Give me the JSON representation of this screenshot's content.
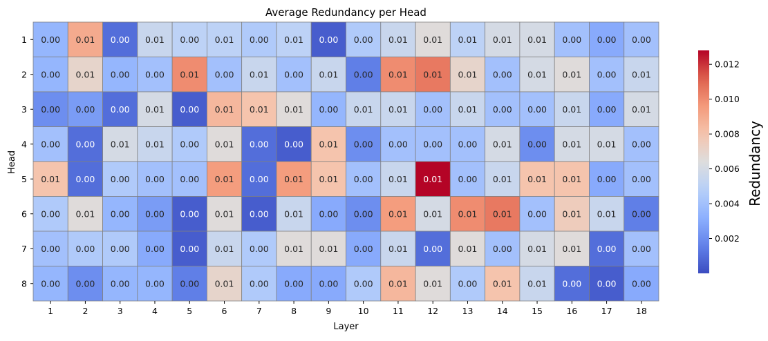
{
  "chart_data": {
    "type": "heatmap",
    "title": "Average Redundancy per Head",
    "xlabel": "Layer",
    "ylabel": "Head",
    "x_categories": [
      "1",
      "2",
      "3",
      "4",
      "5",
      "6",
      "7",
      "8",
      "9",
      "10",
      "11",
      "12",
      "13",
      "14",
      "15",
      "16",
      "17",
      "18"
    ],
    "y_categories": [
      "1",
      "2",
      "3",
      "4",
      "5",
      "6",
      "7",
      "8"
    ],
    "values": [
      [
        0.0035,
        0.009,
        0.001,
        0.0055,
        0.005,
        0.005,
        0.0045,
        0.005,
        0.0005,
        0.0045,
        0.0055,
        0.0065,
        0.005,
        0.006,
        0.006,
        0.004,
        0.003,
        0.004
      ],
      [
        0.0035,
        0.007,
        0.0035,
        0.004,
        0.01,
        0.004,
        0.0055,
        0.004,
        0.0055,
        0.0015,
        0.01,
        0.0105,
        0.007,
        0.004,
        0.006,
        0.0065,
        0.004,
        0.0055
      ],
      [
        0.002,
        0.0025,
        0.001,
        0.006,
        0.0005,
        0.0085,
        0.008,
        0.0065,
        0.0035,
        0.0055,
        0.0055,
        0.004,
        0.0055,
        0.004,
        0.004,
        0.0055,
        0.003,
        0.006
      ],
      [
        0.004,
        0.001,
        0.006,
        0.0055,
        0.0045,
        0.0065,
        0.001,
        0.0005,
        0.008,
        0.002,
        0.004,
        0.004,
        0.004,
        0.006,
        0.002,
        0.006,
        0.006,
        0.004
      ],
      [
        0.008,
        0.001,
        0.0045,
        0.004,
        0.004,
        0.0095,
        0.001,
        0.0095,
        0.008,
        0.004,
        0.0055,
        0.0128,
        0.004,
        0.0055,
        0.008,
        0.008,
        0.003,
        0.004
      ],
      [
        0.0045,
        0.0065,
        0.0035,
        0.0025,
        0.0005,
        0.0065,
        0.0005,
        0.0055,
        0.003,
        0.002,
        0.0095,
        0.006,
        0.01,
        0.0105,
        0.004,
        0.0075,
        0.0055,
        0.0015
      ],
      [
        0.004,
        0.0045,
        0.0045,
        0.003,
        0.0005,
        0.0055,
        0.0045,
        0.0065,
        0.0065,
        0.003,
        0.0055,
        0.001,
        0.0065,
        0.004,
        0.006,
        0.0065,
        0.001,
        0.004
      ],
      [
        0.0035,
        0.002,
        0.0035,
        0.0035,
        0.0015,
        0.007,
        0.0045,
        0.003,
        0.003,
        0.0045,
        0.0085,
        0.0065,
        0.0045,
        0.008,
        0.0055,
        0.001,
        0.0005,
        0.003
      ]
    ],
    "cell_labels": [
      [
        "0.00",
        "0.01",
        "0.00",
        "0.01",
        "0.00",
        "0.01",
        "0.00",
        "0.01",
        "0.00",
        "0.00",
        "0.01",
        "0.01",
        "0.01",
        "0.01",
        "0.01",
        "0.00",
        "0.00",
        "0.00"
      ],
      [
        "0.00",
        "0.01",
        "0.00",
        "0.00",
        "0.01",
        "0.00",
        "0.01",
        "0.00",
        "0.01",
        "0.00",
        "0.01",
        "0.01",
        "0.01",
        "0.00",
        "0.01",
        "0.01",
        "0.00",
        "0.01"
      ],
      [
        "0.00",
        "0.00",
        "0.00",
        "0.01",
        "0.00",
        "0.01",
        "0.01",
        "0.01",
        "0.00",
        "0.01",
        "0.01",
        "0.00",
        "0.01",
        "0.00",
        "0.00",
        "0.01",
        "0.00",
        "0.01"
      ],
      [
        "0.00",
        "0.00",
        "0.01",
        "0.01",
        "0.00",
        "0.01",
        "0.00",
        "0.00",
        "0.01",
        "0.00",
        "0.00",
        "0.00",
        "0.00",
        "0.01",
        "0.00",
        "0.01",
        "0.01",
        "0.00"
      ],
      [
        "0.01",
        "0.00",
        "0.00",
        "0.00",
        "0.00",
        "0.01",
        "0.00",
        "0.01",
        "0.01",
        "0.00",
        "0.01",
        "0.01",
        "0.00",
        "0.01",
        "0.01",
        "0.01",
        "0.00",
        "0.00"
      ],
      [
        "0.00",
        "0.01",
        "0.00",
        "0.00",
        "0.00",
        "0.01",
        "0.00",
        "0.01",
        "0.00",
        "0.00",
        "0.01",
        "0.01",
        "0.01",
        "0.01",
        "0.00",
        "0.01",
        "0.01",
        "0.00"
      ],
      [
        "0.00",
        "0.00",
        "0.00",
        "0.00",
        "0.00",
        "0.01",
        "0.00",
        "0.01",
        "0.01",
        "0.00",
        "0.01",
        "0.00",
        "0.01",
        "0.00",
        "0.01",
        "0.01",
        "0.00",
        "0.00"
      ],
      [
        "0.00",
        "0.00",
        "0.00",
        "0.00",
        "0.00",
        "0.01",
        "0.00",
        "0.00",
        "0.00",
        "0.00",
        "0.01",
        "0.01",
        "0.00",
        "0.01",
        "0.01",
        "0.00",
        "0.00",
        "0.00"
      ]
    ],
    "colormap": "coolwarm",
    "vmin": 0.0,
    "vmax": 0.0128,
    "colorbar": {
      "label": "Redundancy",
      "ticks": [
        0.002,
        0.004,
        0.006,
        0.008,
        0.01,
        0.012
      ],
      "tick_labels": [
        "0.002",
        "0.004",
        "0.006",
        "0.008",
        "0.010",
        "0.012"
      ]
    },
    "cell_border_color": "#808080"
  }
}
